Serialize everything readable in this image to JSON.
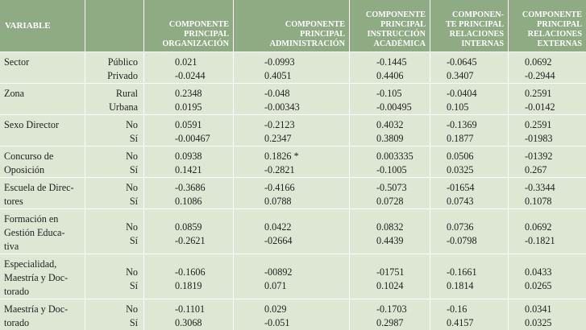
{
  "headers": [
    "VARIABLE",
    "",
    "COMPONENTE PRINCIPAL ORGANIZACIÓN",
    "COMPONENTE PRINCIPAL ADMINISTRACIÓN",
    "COMPONENTE PRINCIPAL INSTRUCCIÓN ACADÉMICA",
    "COMPONEN- TE PRINCIPAL RELACIONES INTERNAS",
    "COMPONENTE PRINCIPAL RELACIONES EXTERNAS"
  ],
  "header_lines": [
    [
      "VARIABLE"
    ],
    [],
    [
      "COMPONENTE",
      "PRINCIPAL",
      "ORGANIZACIÓN"
    ],
    [
      "COMPONENTE",
      "PRINCIPAL",
      "ADMINISTRACIÓN"
    ],
    [
      "COMPONENTE",
      "PRINCIPAL",
      "INSTRUCCIÓN",
      "ACADÉMICA"
    ],
    [
      "COMPONEN-",
      "TE PRINCIPAL",
      "RELACIONES",
      "INTERNAS"
    ],
    [
      "COMPONENTE",
      "PRINCIPAL",
      "RELACIONES",
      "EXTERNAS"
    ]
  ],
  "rows": [
    {
      "variable": [
        "Sector"
      ],
      "categories": [
        "Público",
        "Privado"
      ],
      "values": [
        [
          "0.021",
          "-0.0244"
        ],
        [
          "-0.0993",
          "0.4051"
        ],
        [
          "-0.1445",
          "0.4406"
        ],
        [
          "-0.0645",
          "0.3407"
        ],
        [
          "0.0692",
          "-0.2944"
        ]
      ]
    },
    {
      "variable": [
        "Zona"
      ],
      "categories": [
        "Rural",
        "Urbana"
      ],
      "values": [
        [
          "0.2348",
          "0.0195"
        ],
        [
          "-0.048",
          "-0.00343"
        ],
        [
          "-0.105",
          "-0.00495"
        ],
        [
          "-0.0404",
          "0.105"
        ],
        [
          "0.2591",
          "-0.0142"
        ]
      ]
    },
    {
      "variable": [
        "Sexo Director"
      ],
      "categories": [
        "No",
        "Sí"
      ],
      "values": [
        [
          "0.0591",
          "-0.00467"
        ],
        [
          "-0.2123",
          "0.2347"
        ],
        [
          "0.4032",
          "0.3809"
        ],
        [
          "-0.1369",
          "0.1877"
        ],
        [
          "0.2591",
          "-01983"
        ]
      ]
    },
    {
      "variable": [
        "Concurso de",
        "Oposición"
      ],
      "categories": [
        "No",
        "Sí"
      ],
      "values": [
        [
          "0.0938",
          "0.1421"
        ],
        [
          "0.1826 *",
          "-0.2821"
        ],
        [
          "0.003335",
          "-0.1005"
        ],
        [
          "0.0506",
          "0.0325"
        ],
        [
          "-01392",
          "0.267"
        ]
      ]
    },
    {
      "variable": [
        "Escuela de Direc-",
        "tores"
      ],
      "categories": [
        "No",
        "Sí"
      ],
      "values": [
        [
          "-0.3686",
          "0.1086"
        ],
        [
          "-0.4166",
          "0.0788"
        ],
        [
          "-0.5073",
          "0.0728"
        ],
        [
          "-01654",
          "0.0743"
        ],
        [
          "-0.3344",
          "0.1078"
        ]
      ]
    },
    {
      "variable": [
        "Formación en",
        "Gestión Educa-",
        "tiva"
      ],
      "categories": [
        "No",
        "Sí"
      ],
      "values": [
        [
          "0.0859",
          "-0.2621"
        ],
        [
          "0.0422",
          "-02664"
        ],
        [
          "0.0832",
          "0.4439"
        ],
        [
          "0.0736",
          "-0.0798"
        ],
        [
          "0.0692",
          "-0.1821"
        ]
      ]
    },
    {
      "variable": [
        "Especialidad,",
        "Maestría y Doc-",
        "torado"
      ],
      "categories": [
        "No",
        "Sí"
      ],
      "values": [
        [
          "-0.1606",
          "0.1819"
        ],
        [
          "-00892",
          "0.071"
        ],
        [
          "-01751",
          "0.1024"
        ],
        [
          "-0.1661",
          "0.1814"
        ],
        [
          "0.0433",
          "0.0265"
        ]
      ]
    },
    {
      "variable": [
        "Maestría y Doc-",
        "torado"
      ],
      "categories": [
        "No",
        "Sí"
      ],
      "values": [
        [
          "-0.1101",
          "0.3068"
        ],
        [
          "0.029",
          "-0.051"
        ],
        [
          "-0.1703",
          "0.2987"
        ],
        [
          "-0.16",
          "0.4157"
        ],
        [
          "0.0341",
          "0.0325"
        ]
      ]
    }
  ]
}
